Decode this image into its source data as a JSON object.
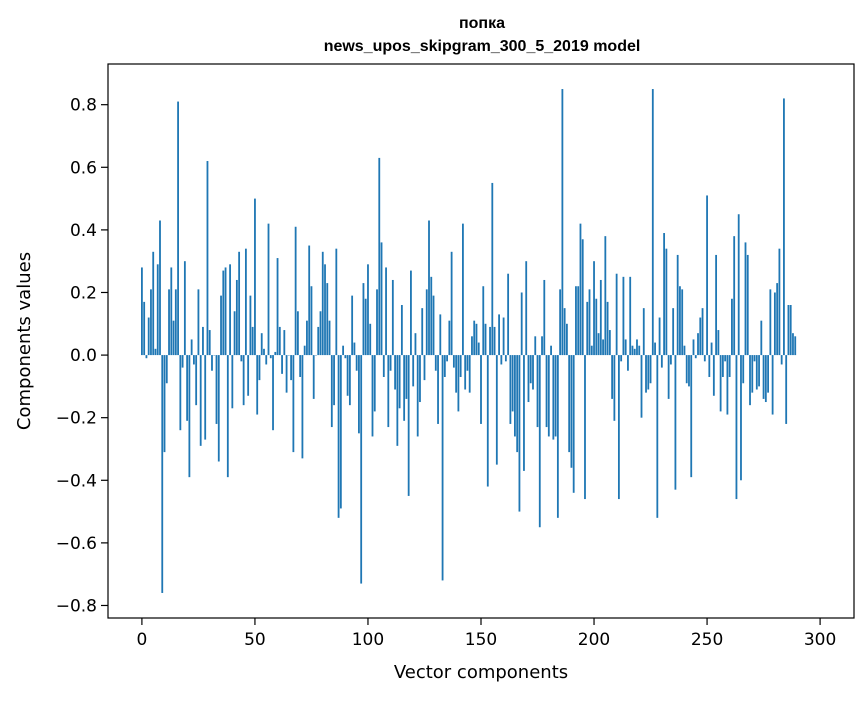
{
  "chart_data": {
    "type": "bar",
    "title_line1": "попка",
    "title_line2": "news_upos_skipgram_300_5_2019 model",
    "xlabel": "Vector components",
    "ylabel": "Components values",
    "xlim": [
      -15,
      315
    ],
    "ylim": [
      -0.84,
      0.93
    ],
    "xticks": [
      0,
      50,
      100,
      150,
      200,
      250,
      300
    ],
    "yticks": [
      -0.8,
      -0.6,
      -0.4,
      -0.2,
      0.0,
      0.2,
      0.4,
      0.6,
      0.8
    ],
    "ytick_labels": [
      "−0.8",
      "−0.6",
      "−0.4",
      "−0.2",
      "0.0",
      "0.2",
      "0.4",
      "0.6",
      "0.8"
    ],
    "bar_color": "#1f77b4",
    "values": [
      0.28,
      0.17,
      -0.01,
      0.12,
      0.21,
      0.33,
      0.02,
      0.29,
      0.43,
      -0.76,
      -0.31,
      -0.09,
      0.21,
      0.28,
      0.11,
      0.21,
      0.81,
      -0.24,
      -0.04,
      0.3,
      -0.21,
      -0.39,
      0.05,
      -0.03,
      -0.16,
      0.21,
      -0.29,
      0.09,
      -0.27,
      0.62,
      0.08,
      -0.05,
      0.0,
      -0.22,
      -0.34,
      0.19,
      0.27,
      0.28,
      -0.39,
      0.29,
      -0.17,
      0.14,
      0.24,
      0.33,
      -0.02,
      -0.16,
      0.34,
      -0.13,
      0.19,
      0.09,
      0.5,
      -0.19,
      -0.08,
      0.07,
      0.02,
      -0.03,
      0.42,
      -0.01,
      -0.24,
      0.01,
      0.31,
      0.09,
      -0.06,
      0.08,
      -0.12,
      0.0,
      -0.08,
      -0.31,
      0.41,
      0.14,
      -0.07,
      -0.33,
      0.03,
      0.11,
      0.35,
      0.22,
      -0.14,
      0.0,
      0.09,
      0.14,
      0.33,
      0.29,
      0.23,
      0.11,
      -0.23,
      -0.16,
      0.34,
      -0.52,
      -0.49,
      0.03,
      -0.01,
      -0.13,
      -0.16,
      0.19,
      0.04,
      -0.05,
      -0.25,
      -0.73,
      0.23,
      0.18,
      0.29,
      0.1,
      -0.26,
      -0.18,
      0.21,
      0.63,
      0.36,
      -0.07,
      0.28,
      -0.23,
      -0.05,
      0.24,
      -0.11,
      -0.29,
      -0.17,
      0.16,
      -0.21,
      -0.14,
      -0.45,
      0.27,
      -0.1,
      0.07,
      -0.26,
      -0.15,
      0.15,
      -0.08,
      0.21,
      0.43,
      0.25,
      0.19,
      -0.05,
      -0.22,
      0.13,
      -0.72,
      -0.07,
      -0.02,
      0.11,
      0.33,
      -0.04,
      -0.12,
      -0.18,
      -0.07,
      0.42,
      -0.11,
      -0.05,
      -0.12,
      0.06,
      0.11,
      0.1,
      0.04,
      -0.22,
      0.22,
      0.1,
      -0.42,
      0.09,
      0.55,
      0.09,
      -0.35,
      0.13,
      -0.03,
      0.12,
      -0.02,
      0.26,
      -0.22,
      -0.18,
      -0.26,
      -0.31,
      -0.5,
      0.2,
      -0.37,
      0.3,
      -0.15,
      -0.09,
      -0.11,
      0.06,
      -0.23,
      -0.55,
      0.06,
      0.24,
      -0.23,
      -0.26,
      0.03,
      -0.27,
      -0.26,
      -0.52,
      0.21,
      0.85,
      0.15,
      0.1,
      -0.31,
      -0.36,
      -0.44,
      0.22,
      0.22,
      0.42,
      0.37,
      -0.46,
      0.17,
      0.21,
      0.03,
      0.3,
      0.18,
      0.07,
      0.24,
      0.05,
      0.38,
      0.17,
      0.08,
      -0.14,
      -0.21,
      0.26,
      -0.46,
      -0.02,
      0.25,
      0.05,
      -0.05,
      0.25,
      0.03,
      0.02,
      0.05,
      0.03,
      -0.2,
      0.15,
      -0.12,
      -0.11,
      -0.09,
      0.85,
      0.04,
      -0.52,
      0.12,
      -0.04,
      0.39,
      0.34,
      -0.14,
      -0.03,
      0.15,
      -0.43,
      0.32,
      0.22,
      0.21,
      0.03,
      -0.09,
      -0.1,
      -0.39,
      0.05,
      -0.01,
      0.07,
      0.12,
      0.15,
      -0.02,
      0.51,
      -0.07,
      0.04,
      -0.13,
      0.32,
      0.08,
      -0.18,
      -0.07,
      -0.02,
      -0.19,
      -0.07,
      0.18,
      0.38,
      -0.46,
      0.45,
      -0.4,
      -0.09,
      0.36,
      0.32,
      -0.16,
      -0.12,
      -0.02,
      -0.11,
      -0.1,
      0.11,
      -0.14,
      -0.15,
      -0.12,
      0.21,
      -0.19,
      0.2,
      0.23,
      0.34,
      -0.03,
      0.82,
      -0.22,
      0.16,
      0.16,
      0.07,
      0.06
    ]
  }
}
